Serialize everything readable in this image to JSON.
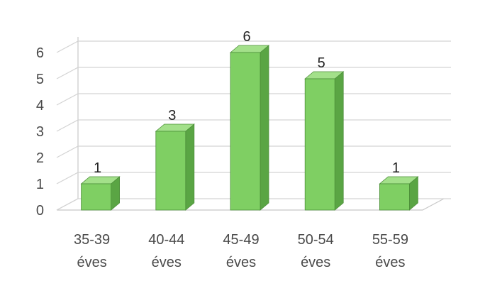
{
  "chart_data": {
    "type": "bar",
    "categories": [
      [
        "35-39",
        "éves"
      ],
      [
        "40-44",
        "éves"
      ],
      [
        "45-49",
        "éves"
      ],
      [
        "50-54",
        "éves"
      ],
      [
        "55-59",
        "éves"
      ]
    ],
    "values": [
      1,
      3,
      6,
      5,
      1
    ],
    "data_labels": [
      "1",
      "3",
      "6",
      "5",
      "1"
    ],
    "yticks": [
      "0",
      "1",
      "2",
      "3",
      "4",
      "5",
      "6"
    ],
    "ylim": [
      0,
      6
    ],
    "grid": true,
    "legend": "none",
    "style": "3d-column",
    "colors": {
      "bar_front": "#7fcf63",
      "bar_side": "#5aa544",
      "bar_top": "#a3e08a",
      "bar_edge": "#4d8f3a",
      "last_label": "#9a9a9a"
    }
  }
}
